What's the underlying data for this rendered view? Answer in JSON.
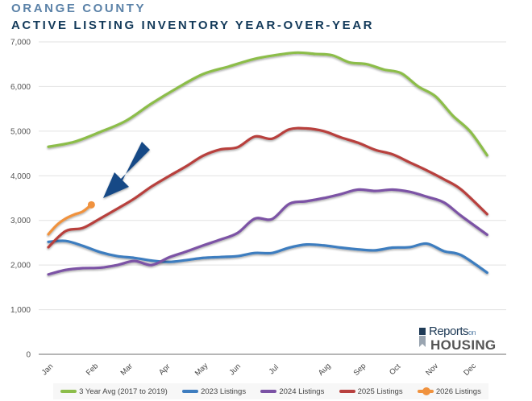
{
  "header": {
    "region": "ORANGE COUNTY",
    "title": "ACTIVE LISTING INVENTORY YEAR-OVER-YEAR"
  },
  "logo": {
    "line1": "Reports",
    "line1_suffix": "on",
    "line2": "HOUSING"
  },
  "chart_data": {
    "type": "line",
    "title": "ACTIVE LISTING INVENTORY YEAR-OVER-YEAR",
    "subtitle": "ORANGE COUNTY",
    "xlabel": "",
    "ylabel": "",
    "ylim": [
      0,
      7000
    ],
    "yticks": [
      0,
      1000,
      2000,
      3000,
      4000,
      5000,
      6000,
      7000
    ],
    "ytick_labels": [
      "0",
      "1,000",
      "2,000",
      "3,000",
      "4,000",
      "5,000",
      "6,000",
      "7,000"
    ],
    "x_unit": "week of year",
    "xlim": [
      0,
      52
    ],
    "month_ticks": [
      {
        "label": "Jan",
        "x": 0
      },
      {
        "label": "Feb",
        "x": 5.2
      },
      {
        "label": "Mar",
        "x": 9.2
      },
      {
        "label": "Apr",
        "x": 13.6
      },
      {
        "label": "May",
        "x": 17.9
      },
      {
        "label": "Jun",
        "x": 21.8
      },
      {
        "label": "Jul",
        "x": 26.3
      },
      {
        "label": "Aug",
        "x": 32.2
      },
      {
        "label": "Sep",
        "x": 36.3
      },
      {
        "label": "Oct",
        "x": 40.4
      },
      {
        "label": "Nov",
        "x": 44.7
      },
      {
        "label": "Dec",
        "x": 49.1
      }
    ],
    "grid": true,
    "legend_position": "bottom",
    "annotation": "arrow pointing to latest 2026 data point",
    "series": [
      {
        "name": "3 Year Avg (2017 to 2019)",
        "color": "#8cbd4a",
        "marker": false,
        "points": [
          [
            0,
            4650
          ],
          [
            3,
            4760
          ],
          [
            6,
            4980
          ],
          [
            9,
            5230
          ],
          [
            12,
            5620
          ],
          [
            15,
            5970
          ],
          [
            18,
            6280
          ],
          [
            21,
            6450
          ],
          [
            24,
            6620
          ],
          [
            27,
            6720
          ],
          [
            29,
            6760
          ],
          [
            31,
            6730
          ],
          [
            33,
            6700
          ],
          [
            35,
            6540
          ],
          [
            37,
            6500
          ],
          [
            39,
            6380
          ],
          [
            41,
            6300
          ],
          [
            43,
            6000
          ],
          [
            45,
            5780
          ],
          [
            47,
            5350
          ],
          [
            49,
            5000
          ],
          [
            51,
            4460
          ]
        ]
      },
      {
        "name": "2023 Listings",
        "color": "#3e7dbf",
        "marker": false,
        "points": [
          [
            0,
            2520
          ],
          [
            2,
            2540
          ],
          [
            4,
            2430
          ],
          [
            6,
            2290
          ],
          [
            8,
            2200
          ],
          [
            10,
            2160
          ],
          [
            12,
            2100
          ],
          [
            14,
            2070
          ],
          [
            16,
            2110
          ],
          [
            18,
            2160
          ],
          [
            20,
            2180
          ],
          [
            22,
            2200
          ],
          [
            24,
            2270
          ],
          [
            26,
            2270
          ],
          [
            28,
            2390
          ],
          [
            30,
            2460
          ],
          [
            32,
            2440
          ],
          [
            34,
            2390
          ],
          [
            36,
            2350
          ],
          [
            38,
            2330
          ],
          [
            40,
            2390
          ],
          [
            42,
            2400
          ],
          [
            44,
            2480
          ],
          [
            46,
            2310
          ],
          [
            48,
            2220
          ],
          [
            51,
            1830
          ]
        ]
      },
      {
        "name": "2024 Listings",
        "color": "#7b52a5",
        "marker": false,
        "points": [
          [
            0,
            1790
          ],
          [
            2,
            1890
          ],
          [
            4,
            1930
          ],
          [
            6,
            1940
          ],
          [
            8,
            2000
          ],
          [
            10,
            2090
          ],
          [
            12,
            2000
          ],
          [
            14,
            2170
          ],
          [
            16,
            2300
          ],
          [
            18,
            2440
          ],
          [
            20,
            2570
          ],
          [
            22,
            2720
          ],
          [
            24,
            3040
          ],
          [
            26,
            3030
          ],
          [
            28,
            3370
          ],
          [
            30,
            3430
          ],
          [
            32,
            3500
          ],
          [
            34,
            3590
          ],
          [
            36,
            3690
          ],
          [
            38,
            3660
          ],
          [
            40,
            3690
          ],
          [
            42,
            3640
          ],
          [
            44,
            3530
          ],
          [
            46,
            3400
          ],
          [
            48,
            3100
          ],
          [
            51,
            2680
          ]
        ]
      },
      {
        "name": "2025 Listings",
        "color": "#b8403e",
        "marker": false,
        "points": [
          [
            0,
            2400
          ],
          [
            2,
            2760
          ],
          [
            4,
            2830
          ],
          [
            6,
            3040
          ],
          [
            8,
            3260
          ],
          [
            10,
            3490
          ],
          [
            12,
            3760
          ],
          [
            14,
            3990
          ],
          [
            16,
            4210
          ],
          [
            18,
            4450
          ],
          [
            20,
            4590
          ],
          [
            22,
            4640
          ],
          [
            24,
            4880
          ],
          [
            26,
            4830
          ],
          [
            28,
            5040
          ],
          [
            30,
            5060
          ],
          [
            32,
            5000
          ],
          [
            34,
            4860
          ],
          [
            36,
            4740
          ],
          [
            38,
            4580
          ],
          [
            40,
            4480
          ],
          [
            42,
            4300
          ],
          [
            44,
            4120
          ],
          [
            46,
            3920
          ],
          [
            48,
            3690
          ],
          [
            51,
            3140
          ]
        ]
      },
      {
        "name": "2026 Listings",
        "color": "#f0923e",
        "marker": true,
        "points": [
          [
            0,
            2690
          ],
          [
            1,
            2900
          ],
          [
            2,
            3040
          ],
          [
            3,
            3130
          ],
          [
            4,
            3200
          ],
          [
            5,
            3350
          ]
        ]
      }
    ]
  }
}
